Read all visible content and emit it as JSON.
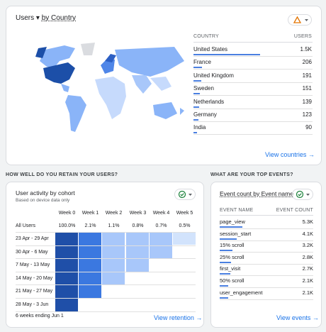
{
  "countries_card": {
    "title_metric": "Users",
    "title_dimension": "by Country",
    "table": {
      "headers": [
        "COUNTRY",
        "USERS"
      ],
      "rows": [
        [
          "United States",
          "1.5K"
        ],
        [
          "France",
          "206"
        ],
        [
          "United Kingdom",
          "191"
        ],
        [
          "Sweden",
          "151"
        ],
        [
          "Netherlands",
          "139"
        ],
        [
          "Germany",
          "123"
        ],
        [
          "India",
          "90"
        ]
      ]
    },
    "link": "View countries"
  },
  "retention": {
    "section_label": "HOW WELL DO YOU RETAIN YOUR USERS?",
    "title": "User activity by cohort",
    "subtitle": "Based on device data only",
    "columns": [
      "Week 0",
      "Week 1",
      "Week 2",
      "Week 3",
      "Week 4",
      "Week 5"
    ],
    "all_users": {
      "label": "All Users",
      "values": [
        "100.0%",
        "2.1%",
        "1.1%",
        "0.8%",
        "0.7%",
        "0.5%"
      ]
    },
    "cohorts": [
      "23 Apr - 29 Apr",
      "30 Apr - 6 May",
      "7 May - 13 May",
      "14 May - 20 May",
      "21 May - 27 May",
      "28 May - 3 Jun"
    ],
    "footer": "6 weeks ending Jun 1",
    "link": "View retention"
  },
  "events": {
    "section_label": "WHAT ARE YOUR TOP EVENTS?",
    "title": "Event count by Event name",
    "table": {
      "headers": [
        "EVENT NAME",
        "EVENT COUNT"
      ],
      "rows": [
        [
          "page_view",
          "5.3K"
        ],
        [
          "session_start",
          "4.1K"
        ],
        [
          "15% scroll",
          "3.2K"
        ],
        [
          "25% scroll",
          "2.8K"
        ],
        [
          "first_visit",
          "2.7K"
        ],
        [
          "50% scroll",
          "2.1K"
        ],
        [
          "user_engagement",
          "2.1K"
        ]
      ]
    },
    "link": "View events"
  }
}
